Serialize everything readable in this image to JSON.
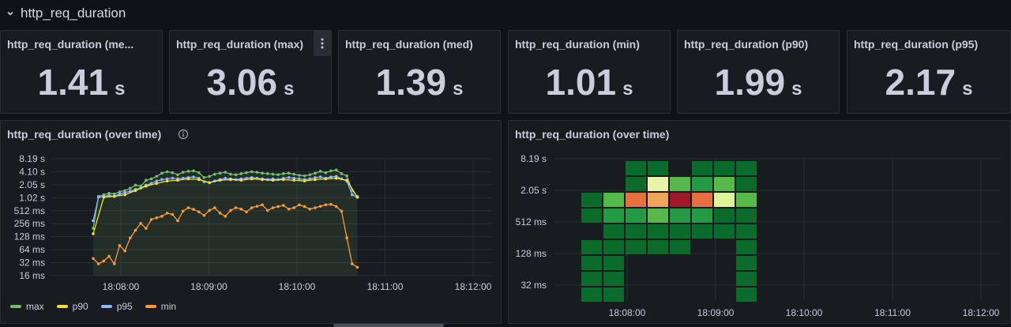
{
  "row": {
    "title": "http_req_duration"
  },
  "stats": [
    {
      "title": "http_req_duration (me...",
      "value": "1.41",
      "unit": "s"
    },
    {
      "title": "http_req_duration (max)",
      "value": "3.06",
      "unit": "s"
    },
    {
      "title": "http_req_duration (med)",
      "value": "1.39",
      "unit": "s"
    },
    {
      "title": "http_req_duration (min)",
      "value": "1.01",
      "unit": "s"
    },
    {
      "title": "http_req_duration (p90)",
      "value": "1.99",
      "unit": "s"
    },
    {
      "title": "http_req_duration (p95)",
      "value": "2.17",
      "unit": "s"
    }
  ],
  "timeseries_panel": {
    "title": "http_req_duration (over time)"
  },
  "heatmap_panel": {
    "title": "http_req_duration (over time)"
  },
  "colors": {
    "max": "#73bf69",
    "p90": "#fade2a",
    "p95": "#8ab8ff",
    "min": "#ff9830",
    "background": "#111217",
    "panel": "#181b1f"
  },
  "chart_data": [
    {
      "type": "line",
      "title": "http_req_duration (over time)",
      "y_ticks": [
        "8.19 s",
        "4.10 s",
        "2.05 s",
        "1.02 s",
        "512 ms",
        "256 ms",
        "128 ms",
        "64 ms",
        "32 ms",
        "16 ms"
      ],
      "x_ticks": [
        "18:08:00",
        "18:09:00",
        "18:10:00",
        "18:11:00",
        "18:12:00"
      ],
      "y_scale": "log2",
      "x_range_seconds": [
        0,
        300
      ],
      "y_range_ms": [
        16,
        8192
      ],
      "grid": true,
      "legend_position": "bottom-left",
      "series": [
        {
          "name": "max",
          "color": "#73bf69",
          "x": [
            0,
            2,
            4,
            6,
            8,
            10,
            12,
            14,
            16,
            18,
            20,
            22,
            24,
            26,
            28,
            30,
            32,
            34,
            36,
            38,
            40,
            42,
            44,
            46,
            48,
            50,
            52,
            54,
            56,
            58,
            60,
            62,
            64,
            66,
            68,
            70,
            72,
            74,
            76,
            78,
            80,
            82,
            84,
            86,
            88,
            90,
            92,
            94,
            96,
            98,
            100
          ],
          "y": [
            200,
            1100,
            1200,
            1300,
            1250,
            1400,
            1500,
            1700,
            2000,
            1900,
            2600,
            2800,
            3200,
            3800,
            4100,
            3900,
            3500,
            4000,
            4200,
            4300,
            3900,
            3000,
            3200,
            3600,
            3800,
            4000,
            3600,
            3500,
            3700,
            3900,
            4100,
            4000,
            3800,
            3700,
            3600,
            3500,
            3700,
            3800,
            3600,
            3400,
            3300,
            3500,
            3800,
            4200,
            3900,
            4300,
            4500,
            3700,
            3300,
            1500,
            1100
          ]
        },
        {
          "name": "p90",
          "color": "#fade2a",
          "x": [
            0,
            4,
            8,
            12,
            16,
            20,
            24,
            28,
            32,
            36,
            40,
            44,
            48,
            52,
            56,
            60,
            64,
            68,
            72,
            76,
            80,
            84,
            88,
            92,
            96,
            100
          ],
          "y": [
            150,
            1050,
            1100,
            1200,
            1500,
            1900,
            2200,
            2500,
            2600,
            2800,
            2700,
            2300,
            2600,
            2700,
            2600,
            2800,
            2700,
            2600,
            2700,
            2600,
            2500,
            2700,
            2800,
            2900,
            2600,
            1050
          ]
        },
        {
          "name": "p95",
          "color": "#8ab8ff",
          "x": [
            0,
            2,
            4,
            6,
            8,
            10,
            12,
            14,
            16,
            18,
            20,
            22,
            24,
            26,
            28,
            30,
            32,
            34,
            36,
            38,
            40,
            42,
            44,
            46,
            48,
            50,
            52,
            54,
            56,
            58,
            60,
            62,
            64,
            66,
            68,
            70,
            72,
            74,
            76,
            78,
            80,
            82,
            84,
            86,
            88,
            90,
            92,
            94,
            96,
            98,
            100
          ],
          "y": [
            300,
            1050,
            1100,
            1150,
            1100,
            1250,
            1350,
            1450,
            1600,
            1700,
            2000,
            2200,
            2500,
            2700,
            2800,
            2900,
            2800,
            2900,
            3000,
            3100,
            2900,
            2400,
            2300,
            2500,
            2700,
            2900,
            2800,
            2700,
            2800,
            2900,
            3000,
            2900,
            2800,
            2700,
            2800,
            2700,
            2900,
            3000,
            2900,
            2800,
            2700,
            2800,
            3000,
            3100,
            2900,
            3100,
            3200,
            2800,
            2500,
            1200,
            1050
          ]
        },
        {
          "name": "min",
          "color": "#ff9830",
          "x": [
            0,
            2,
            4,
            6,
            8,
            10,
            12,
            14,
            16,
            18,
            20,
            22,
            24,
            26,
            28,
            30,
            32,
            34,
            36,
            38,
            40,
            42,
            44,
            46,
            48,
            50,
            52,
            54,
            56,
            58,
            60,
            62,
            64,
            66,
            68,
            70,
            72,
            74,
            76,
            78,
            80,
            82,
            84,
            86,
            88,
            90,
            92,
            94,
            96,
            98,
            100
          ],
          "y": [
            40,
            30,
            35,
            45,
            30,
            80,
            60,
            120,
            180,
            260,
            200,
            320,
            350,
            380,
            450,
            420,
            300,
            500,
            600,
            550,
            480,
            400,
            520,
            600,
            450,
            380,
            520,
            600,
            560,
            480,
            600,
            650,
            700,
            520,
            600,
            640,
            680,
            560,
            600,
            700,
            640,
            560,
            600,
            650,
            700,
            720,
            640,
            500,
            120,
            30,
            25
          ]
        }
      ]
    },
    {
      "type": "heatmap",
      "title": "http_req_duration (over time)",
      "y_ticks": [
        "8.19 s",
        "2.05 s",
        "512 ms",
        "128 ms",
        "32 ms"
      ],
      "x_ticks": [
        "18:08:00",
        "18:09:00",
        "18:10:00",
        "18:11:00",
        "18:12:00"
      ],
      "buckets": [
        "16 ms",
        "32 ms",
        "64 ms",
        "128 ms",
        "256 ms",
        "512 ms",
        "1.02 s",
        "2.05 s",
        "4.10 s"
      ],
      "columns": 8,
      "values": [
        [
          0,
          0,
          3,
          3,
          0,
          3,
          3,
          3
        ],
        [
          0,
          0,
          3,
          6,
          5,
          4,
          5,
          3
        ],
        [
          3,
          5,
          8,
          7,
          9,
          8,
          7,
          5
        ],
        [
          3,
          4,
          4,
          5,
          4,
          4,
          3,
          3
        ],
        [
          0,
          3,
          3,
          3,
          3,
          3,
          3,
          3
        ],
        [
          3,
          3,
          3,
          3,
          3,
          0,
          0,
          3
        ],
        [
          3,
          3,
          0,
          0,
          0,
          0,
          0,
          3
        ],
        [
          3,
          3,
          0,
          0,
          0,
          0,
          0,
          3
        ],
        [
          3,
          3,
          0,
          0,
          0,
          0,
          0,
          3
        ]
      ]
    }
  ]
}
